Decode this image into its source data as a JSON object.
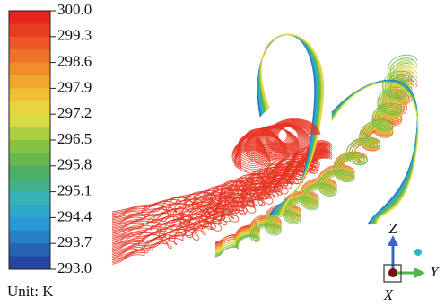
{
  "colorbar": {
    "ticks": [
      "300.0",
      "299.3",
      "298.6",
      "297.9",
      "297.2",
      "296.5",
      "295.8",
      "295.1",
      "294.4",
      "293.7",
      "293.0"
    ],
    "unit": "Unit: K"
  },
  "triad": {
    "z": "Z",
    "y": "Y",
    "x": "X"
  }
}
